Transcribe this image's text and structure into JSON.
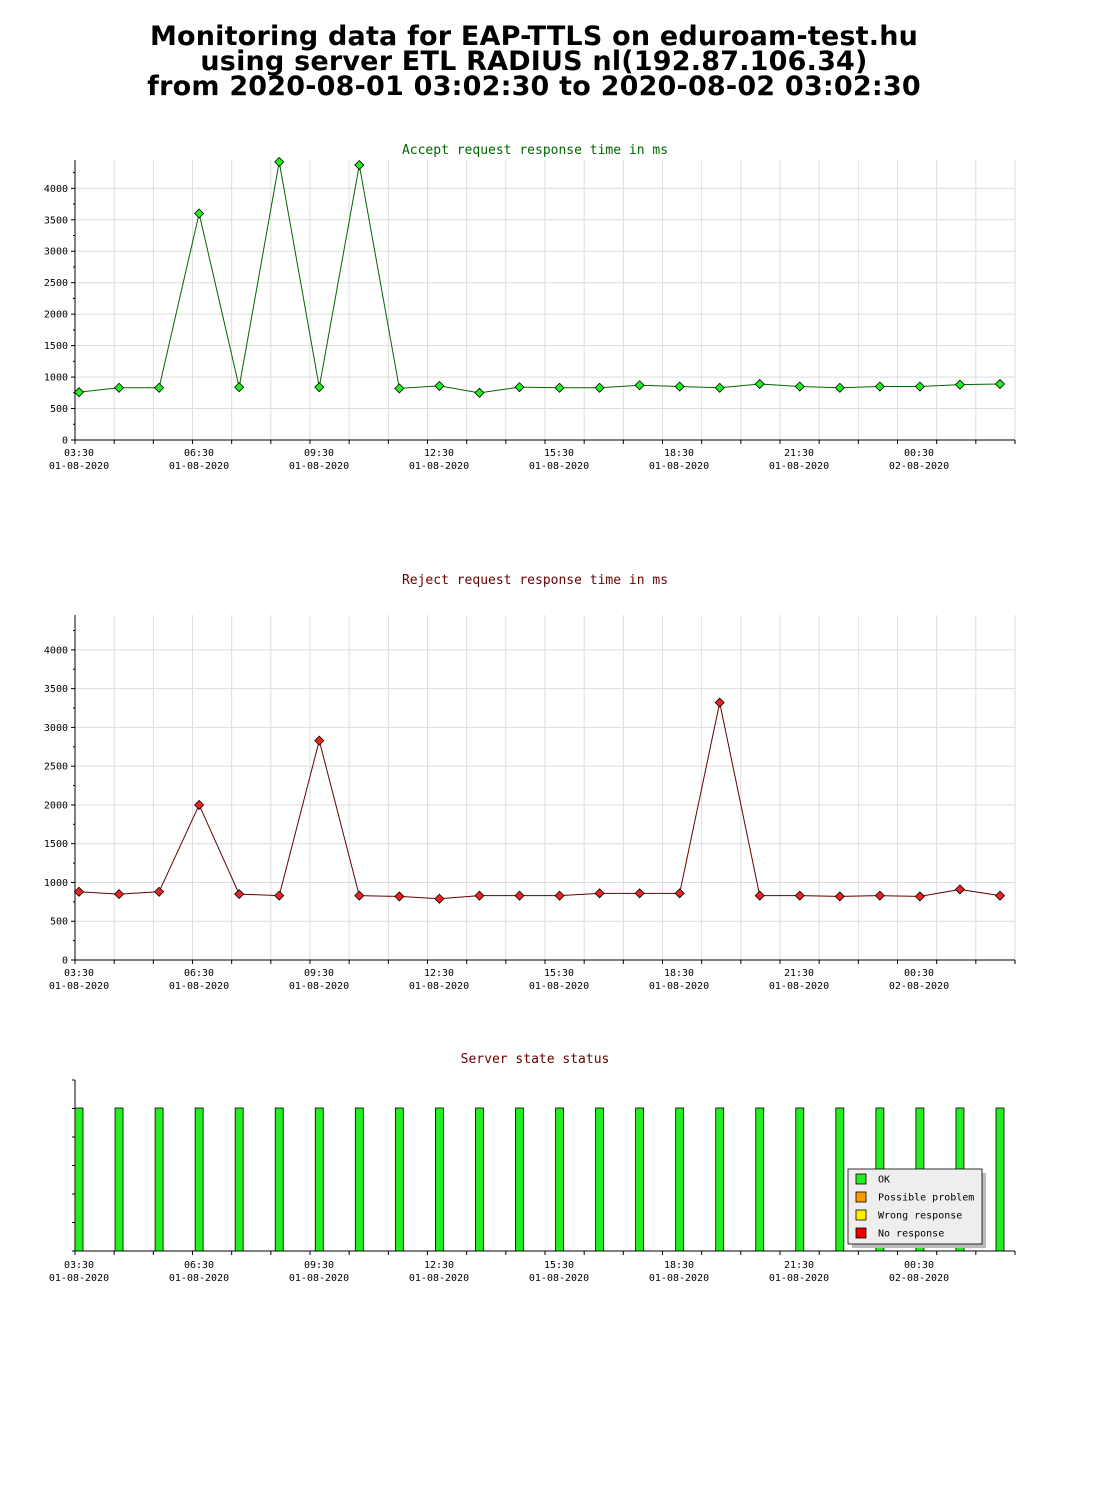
{
  "page": {
    "title_lines": [
      "Monitoring data for EAP-TTLS on eduroam-test.hu",
      "using server ETL RADIUS nl(192.87.106.34)",
      "from 2020-08-01 03:02:30 to 2020-08-02 03:02:30"
    ]
  },
  "colors": {
    "accept_line": "#006600",
    "accept_marker": "#22ee22",
    "reject_line": "#660000",
    "reject_marker": "#ee2222",
    "status_ok": "#22ee22",
    "status_possible_problem": "#ff9900",
    "status_wrong_response": "#ffee00",
    "status_no_response": "#ee0000"
  },
  "chart_data": [
    {
      "type": "line",
      "title": "Accept request response time in ms",
      "x_tick_labels": [
        [
          "03:30",
          "01-08-2020"
        ],
        [
          "06:30",
          "01-08-2020"
        ],
        [
          "09:30",
          "01-08-2020"
        ],
        [
          "12:30",
          "01-08-2020"
        ],
        [
          "15:30",
          "01-08-2020"
        ],
        [
          "18:30",
          "01-08-2020"
        ],
        [
          "21:30",
          "01-08-2020"
        ],
        [
          "00:30",
          "02-08-2020"
        ]
      ],
      "y_ticks": [
        0,
        500,
        1000,
        1500,
        2000,
        2500,
        3000,
        3500,
        4000
      ],
      "ylim": [
        0,
        4450
      ],
      "grid": true,
      "series": [
        {
          "values": [
            760,
            830,
            830,
            3600,
            840,
            4420,
            840,
            4370,
            820,
            860,
            750,
            840,
            830,
            830,
            870,
            850,
            830,
            890,
            850,
            830,
            850,
            850,
            880,
            890
          ]
        }
      ]
    },
    {
      "type": "line",
      "title": "Reject request response time in ms",
      "x_tick_labels": [
        [
          "03:30",
          "01-08-2020"
        ],
        [
          "06:30",
          "01-08-2020"
        ],
        [
          "09:30",
          "01-08-2020"
        ],
        [
          "12:30",
          "01-08-2020"
        ],
        [
          "15:30",
          "01-08-2020"
        ],
        [
          "18:30",
          "01-08-2020"
        ],
        [
          "21:30",
          "01-08-2020"
        ],
        [
          "00:30",
          "02-08-2020"
        ]
      ],
      "y_ticks": [
        0,
        500,
        1000,
        1500,
        2000,
        2500,
        3000,
        3500,
        4000
      ],
      "ylim": [
        0,
        4450
      ],
      "grid": true,
      "series": [
        {
          "values": [
            880,
            850,
            880,
            2000,
            850,
            830,
            2830,
            830,
            820,
            790,
            830,
            830,
            830,
            860,
            860,
            860,
            3320,
            830,
            830,
            820,
            830,
            820,
            910,
            830
          ]
        }
      ]
    },
    {
      "type": "bar",
      "title": "Server state status",
      "x_tick_labels": [
        [
          "03:30",
          "01-08-2020"
        ],
        [
          "06:30",
          "01-08-2020"
        ],
        [
          "09:30",
          "01-08-2020"
        ],
        [
          "12:30",
          "01-08-2020"
        ],
        [
          "15:30",
          "01-08-2020"
        ],
        [
          "18:30",
          "01-08-2020"
        ],
        [
          "21:30",
          "01-08-2020"
        ],
        [
          "00:30",
          "02-08-2020"
        ]
      ],
      "grid": false,
      "legend": {
        "placement": "bottom-right",
        "entries": [
          "OK",
          "Possible problem",
          "Wrong response",
          "No response"
        ]
      },
      "statuses": [
        "OK",
        "OK",
        "OK",
        "OK",
        "OK",
        "OK",
        "OK",
        "OK",
        "OK",
        "OK",
        "OK",
        "OK",
        "OK",
        "OK",
        "OK",
        "OK",
        "OK",
        "OK",
        "OK",
        "OK",
        "OK",
        "OK",
        "OK",
        "OK"
      ]
    }
  ]
}
